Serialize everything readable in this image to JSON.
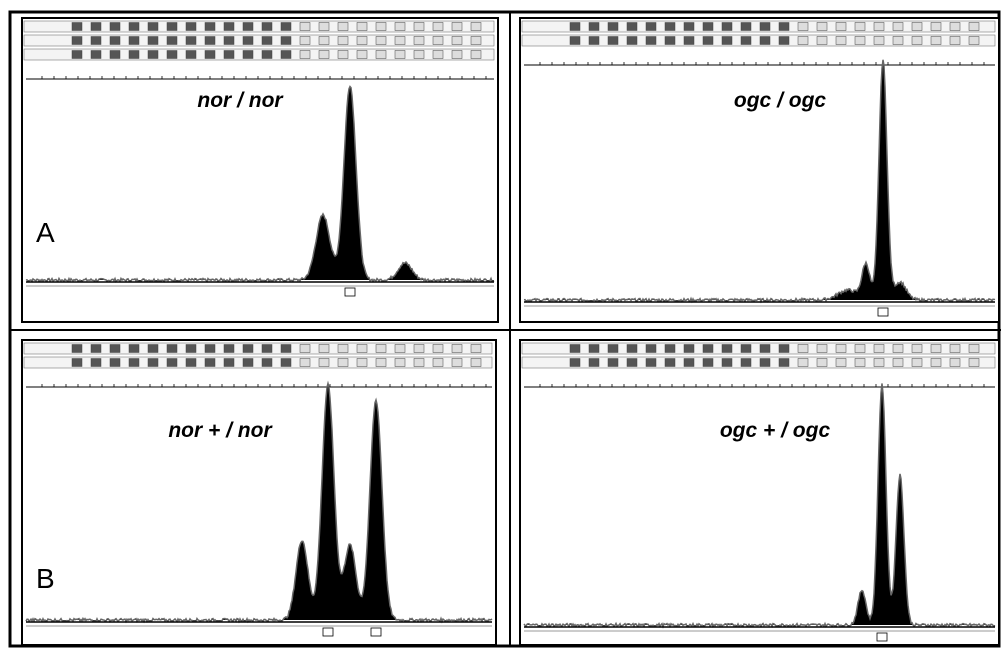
{
  "figure": {
    "panels": [
      {
        "title": "nor / nor",
        "label": "A"
      },
      {
        "title": "ogc / ogc"
      },
      {
        "title": "nor + / nor",
        "label": "B"
      },
      {
        "title": "ogc + / ogc"
      }
    ]
  }
}
